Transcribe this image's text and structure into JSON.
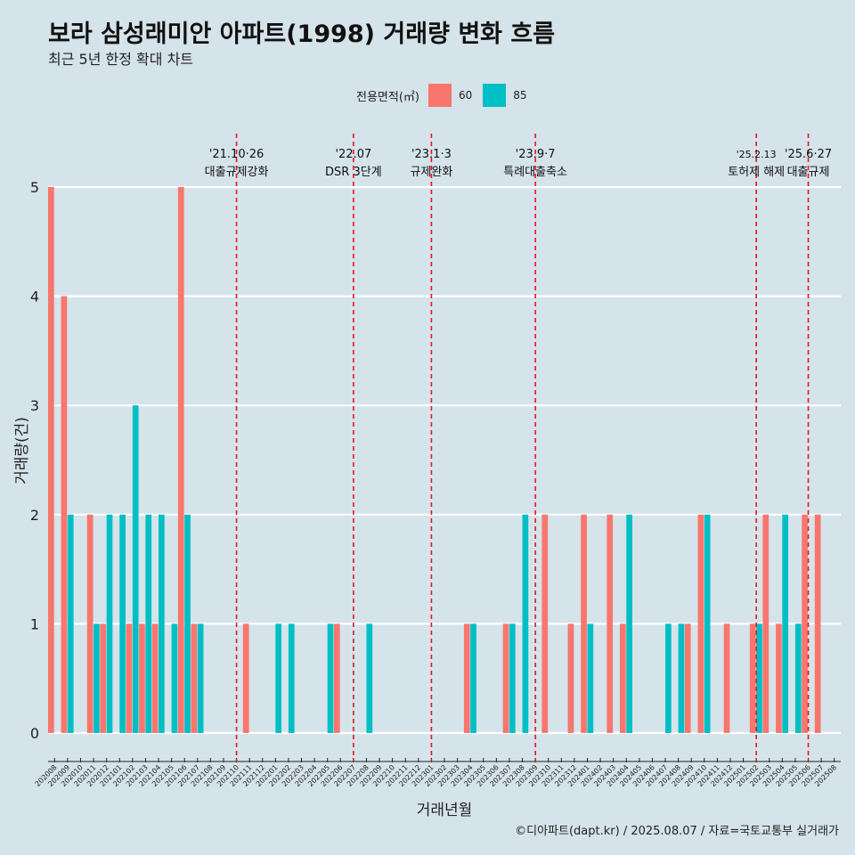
{
  "title": "보라 삼성래미안 아파트(1998) 거래량 변화 흐름",
  "subtitle": "최근 5년 한정 확대 차트",
  "caption": "©디아파트(dapt.kr) / 2025.08.07 / 자료=국토교통부 실거래가",
  "colors": {
    "s60": "#f8766d",
    "s85": "#00bfc4",
    "background": "#d5e3ea",
    "grid": "#ffffff",
    "event": "#e8141c"
  },
  "chart_data": {
    "type": "bar",
    "xlabel": "거래년월",
    "ylabel": "거래량(건)",
    "ylim": [
      0,
      5
    ],
    "yticks": [
      0,
      1,
      2,
      3,
      4,
      5
    ],
    "legend_title": "전용면적(㎡)",
    "legend_position": "top",
    "categories": [
      "202008",
      "202009",
      "202010",
      "202011",
      "202012",
      "202101",
      "202102",
      "202103",
      "202104",
      "202105",
      "202106",
      "202107",
      "202108",
      "202109",
      "202110",
      "202111",
      "202112",
      "202201",
      "202202",
      "202203",
      "202204",
      "202205",
      "202206",
      "202207",
      "202208",
      "202209",
      "202210",
      "202211",
      "202212",
      "202301",
      "202302",
      "202303",
      "202304",
      "202305",
      "202306",
      "202307",
      "202308",
      "202309",
      "202310",
      "202311",
      "202312",
      "202401",
      "202402",
      "202403",
      "202404",
      "202405",
      "202406",
      "202407",
      "202408",
      "202409",
      "202410",
      "202411",
      "202412",
      "202501",
      "202502",
      "202503",
      "202504",
      "202505",
      "202506",
      "202507",
      "202508"
    ],
    "series": [
      {
        "name": "60",
        "values": [
          5,
          4,
          0,
          2,
          1,
          0,
          1,
          1,
          1,
          0,
          5,
          1,
          0,
          0,
          0,
          1,
          0,
          0,
          0,
          0,
          0,
          0,
          1,
          0,
          0,
          0,
          0,
          0,
          0,
          0,
          0,
          0,
          1,
          0,
          0,
          1,
          0,
          0,
          2,
          0,
          1,
          2,
          0,
          2,
          1,
          0,
          0,
          0,
          0,
          1,
          2,
          0,
          1,
          0,
          1,
          2,
          1,
          0,
          2,
          2,
          0
        ]
      },
      {
        "name": "85",
        "values": [
          0,
          2,
          0,
          1,
          2,
          2,
          3,
          2,
          2,
          1,
          2,
          1,
          0,
          0,
          0,
          0,
          0,
          1,
          1,
          0,
          0,
          1,
          0,
          0,
          1,
          0,
          0,
          0,
          0,
          0,
          0,
          0,
          1,
          0,
          0,
          1,
          2,
          0,
          0,
          0,
          0,
          1,
          0,
          0,
          2,
          0,
          0,
          1,
          1,
          0,
          2,
          0,
          0,
          0,
          1,
          0,
          2,
          1,
          0,
          0,
          0
        ]
      }
    ],
    "events": [
      {
        "date": "202110",
        "line1": "'21.10·26",
        "line2": "대출규제강화"
      },
      {
        "date": "202207",
        "line1": "'22.07",
        "line2": "DSR 3단계"
      },
      {
        "date": "202301",
        "line1": "'23.1·3",
        "line2": "규제완화"
      },
      {
        "date": "202309",
        "line1": "'23.9·7",
        "line2": "특례대출축소"
      },
      {
        "date": "202502",
        "line1": "'25.2.13",
        "line2": "토허제 해제"
      },
      {
        "date": "202506",
        "line1": "'25.6·27",
        "line2": "대출규제"
      }
    ]
  }
}
